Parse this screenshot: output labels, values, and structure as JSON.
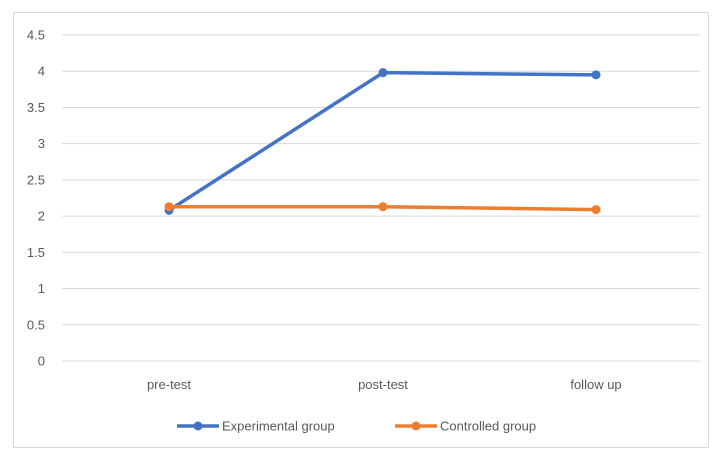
{
  "chart_data": {
    "type": "line",
    "categories": [
      "pre-test",
      "post-test",
      "follow up"
    ],
    "series": [
      {
        "name": "Experimental group",
        "values": [
          2.08,
          3.98,
          3.95
        ],
        "color": "#4472c4"
      },
      {
        "name": "Controlled group",
        "values": [
          2.13,
          2.13,
          2.09
        ],
        "color": "#ed7d31"
      }
    ],
    "y_ticks": [
      "0",
      "0.5",
      "1",
      "1.5",
      "2",
      "2.5",
      "3",
      "3.5",
      "4",
      "4.5"
    ],
    "ylim": [
      0,
      4.5
    ],
    "grid": true,
    "legend": "bottom",
    "title": "",
    "xlabel": "",
    "ylabel": ""
  }
}
